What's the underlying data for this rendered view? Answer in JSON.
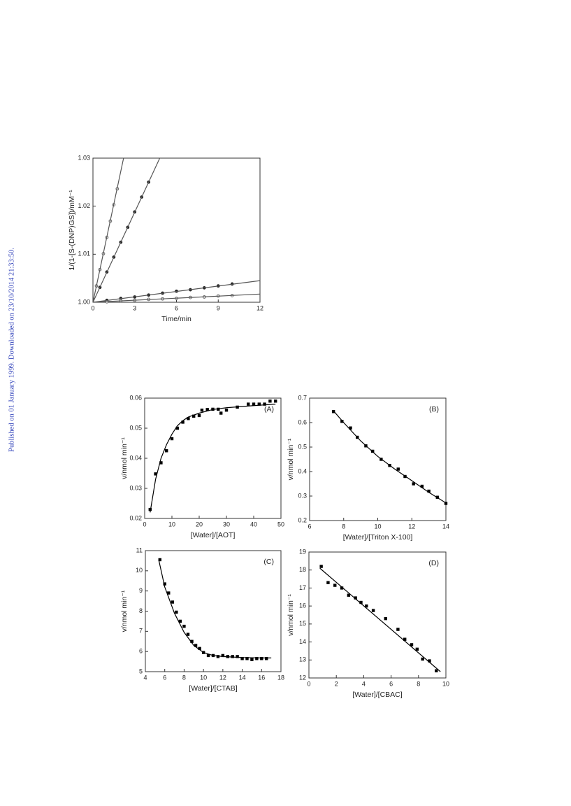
{
  "side_note": "Published on 01 January 1999. Downloaded on 23/10/2014 21:33:50.",
  "chart_data": [
    {
      "type": "scatter",
      "xlabel": "Time/min",
      "ylabel": "1/(1-[S-(DNP)GS])/mM⁻¹",
      "xlim": [
        0,
        12
      ],
      "xticks": [
        0,
        3,
        6,
        9,
        12
      ],
      "ylim": [
        1.0,
        1.03
      ],
      "yticks": [
        {
          "value": 1.0,
          "label": "1.00"
        },
        {
          "value": 1.01,
          "label": "1.01"
        },
        {
          "value": 1.02,
          "label": "1.02"
        },
        {
          "value": 1.03,
          "label": "1.03"
        }
      ],
      "series": [
        {
          "mode": "markers",
          "marker": "circle-open",
          "color": "#555555",
          "x": [
            0.25,
            0.5,
            0.75,
            1.0,
            1.25,
            1.5,
            1.75
          ],
          "values": [
            1.0034,
            1.0068,
            1.0101,
            1.0135,
            1.0169,
            1.0203,
            1.0236
          ]
        },
        {
          "mode": "line",
          "color": "#555555",
          "x": [
            0,
            2.2
          ],
          "values": [
            1.0,
            1.03
          ]
        },
        {
          "mode": "markers",
          "marker": "circle-filled",
          "color": "#222222",
          "x": [
            0.5,
            1.0,
            1.5,
            2.0,
            2.5,
            3.0,
            3.5,
            4.0
          ],
          "values": [
            1.0031,
            1.0063,
            1.0094,
            1.0125,
            1.0156,
            1.0188,
            1.0219,
            1.025
          ]
        },
        {
          "mode": "line",
          "color": "#555555",
          "x": [
            0,
            4.8
          ],
          "values": [
            1.0,
            1.03
          ]
        },
        {
          "mode": "markers",
          "marker": "circle-filled",
          "color": "#222222",
          "x": [
            1,
            2,
            3,
            4,
            5,
            6,
            7,
            8,
            9,
            10
          ],
          "values": [
            1.0004,
            1.0008,
            1.0011,
            1.0015,
            1.0019,
            1.0023,
            1.0026,
            1.003,
            1.0034,
            1.0038
          ]
        },
        {
          "mode": "line",
          "color": "#555555",
          "x": [
            0,
            12
          ],
          "values": [
            1.0,
            1.0045
          ]
        },
        {
          "mode": "markers",
          "marker": "circle-open",
          "color": "#555555",
          "x": [
            1,
            2,
            3,
            4,
            5,
            6,
            7,
            8,
            9,
            10
          ],
          "values": [
            1.0001,
            1.0003,
            1.0004,
            1.0006,
            1.0007,
            1.0008,
            1.001,
            1.0011,
            1.0013,
            1.0014
          ]
        },
        {
          "mode": "line",
          "color": "#555555",
          "x": [
            0,
            12
          ],
          "values": [
            1.0,
            1.0017
          ]
        }
      ]
    },
    {
      "type": "scatter",
      "panel": "(A)",
      "xlabel": "[Water]/[AOT]",
      "ylabel": "v/nmol  min⁻¹",
      "xlim": [
        0,
        50
      ],
      "xticks": [
        0,
        10,
        20,
        30,
        40,
        50
      ],
      "ylim": [
        0.02,
        0.06
      ],
      "yticks": [
        0.02,
        0.03,
        0.04,
        0.05,
        0.06
      ],
      "series": [
        {
          "mode": "markers",
          "marker": "square",
          "color": "#000000",
          "x": [
            2,
            4,
            6,
            8,
            10,
            12,
            14,
            16,
            18,
            20,
            21,
            23,
            25,
            27,
            28,
            30,
            34,
            38,
            40,
            42,
            44,
            46,
            48
          ],
          "values": [
            0.023,
            0.0348,
            0.0385,
            0.0425,
            0.0465,
            0.05,
            0.052,
            0.0532,
            0.054,
            0.0542,
            0.056,
            0.0562,
            0.0563,
            0.0563,
            0.055,
            0.056,
            0.057,
            0.058,
            0.058,
            0.058,
            0.058,
            0.059,
            0.059
          ]
        },
        {
          "mode": "line",
          "color": "#000000",
          "x": [
            2,
            4,
            6,
            8,
            10,
            12,
            14,
            16,
            20,
            25,
            30,
            40,
            48
          ],
          "values": [
            0.022,
            0.033,
            0.04,
            0.0445,
            0.048,
            0.0508,
            0.0525,
            0.0537,
            0.055,
            0.0562,
            0.0568,
            0.0575,
            0.058
          ]
        }
      ]
    },
    {
      "type": "scatter",
      "panel": "(B)",
      "xlabel": "[Water]/[Triton X-100]",
      "ylabel": "v/nmol  min⁻¹",
      "xlim": [
        6,
        14
      ],
      "xticks": [
        6,
        8,
        10,
        12,
        14
      ],
      "ylim": [
        0.2,
        0.7
      ],
      "yticks": [
        0.2,
        0.3,
        0.4,
        0.5,
        0.6,
        0.7
      ],
      "series": [
        {
          "mode": "markers",
          "marker": "square",
          "color": "#000000",
          "x": [
            7.4,
            7.9,
            8.4,
            8.8,
            9.3,
            9.7,
            10.2,
            10.7,
            11.2,
            11.6,
            12.1,
            12.6,
            13.0,
            13.5,
            14.0
          ],
          "values": [
            0.645,
            0.605,
            0.578,
            0.54,
            0.505,
            0.483,
            0.45,
            0.425,
            0.41,
            0.38,
            0.35,
            0.34,
            0.32,
            0.295,
            0.27
          ]
        },
        {
          "mode": "line",
          "color": "#000000",
          "x": [
            7.4,
            8,
            9,
            10,
            11,
            12,
            13,
            14
          ],
          "values": [
            0.648,
            0.6,
            0.525,
            0.462,
            0.41,
            0.363,
            0.315,
            0.272
          ]
        }
      ]
    },
    {
      "type": "scatter",
      "panel": "(C)",
      "xlabel": "[Water]/[CTAB]",
      "ylabel": "v/nmol  min⁻¹",
      "xlim": [
        4,
        18
      ],
      "xticks": [
        4,
        6,
        8,
        10,
        12,
        14,
        16,
        18
      ],
      "ylim": [
        5,
        11
      ],
      "yticks": [
        5,
        6,
        7,
        8,
        9,
        10,
        11
      ],
      "series": [
        {
          "mode": "markers",
          "marker": "square",
          "color": "#000000",
          "x": [
            5.5,
            6,
            6.4,
            6.8,
            7.2,
            7.6,
            8,
            8.4,
            8.8,
            9.2,
            9.6,
            10,
            10.5,
            11,
            11.5,
            12,
            12.5,
            13,
            13.5,
            14,
            14.5,
            15,
            15.5,
            16,
            16.5
          ],
          "values": [
            10.55,
            9.35,
            8.9,
            8.45,
            7.95,
            7.5,
            7.25,
            6.85,
            6.5,
            6.3,
            6.15,
            5.95,
            5.8,
            5.8,
            5.75,
            5.8,
            5.75,
            5.75,
            5.75,
            5.65,
            5.65,
            5.6,
            5.65,
            5.65,
            5.65
          ]
        },
        {
          "mode": "line",
          "color": "#000000",
          "x": [
            5.4,
            6,
            7,
            8,
            9,
            10,
            11,
            12,
            14,
            16,
            17
          ],
          "values": [
            10.5,
            9.2,
            7.9,
            6.95,
            6.3,
            5.95,
            5.8,
            5.75,
            5.7,
            5.68,
            5.68
          ]
        }
      ]
    },
    {
      "type": "scatter",
      "panel": "(D)",
      "xlabel": "[Water]/[CBAC]",
      "ylabel": "v/nmol  min⁻¹",
      "xlim": [
        0,
        10
      ],
      "xticks": [
        0,
        2,
        4,
        6,
        8,
        10
      ],
      "ylim": [
        12,
        19
      ],
      "yticks": [
        12,
        13,
        14,
        15,
        16,
        17,
        18,
        19
      ],
      "series": [
        {
          "mode": "markers",
          "marker": "square",
          "color": "#000000",
          "x": [
            0.9,
            1.4,
            1.9,
            2.4,
            2.9,
            3.4,
            3.8,
            4.2,
            4.7,
            5.6,
            6.5,
            7.0,
            7.5,
            7.9,
            8.3,
            8.8,
            9.3
          ],
          "values": [
            18.2,
            17.3,
            17.15,
            17.0,
            16.6,
            16.45,
            16.2,
            16.0,
            15.75,
            15.3,
            14.7,
            14.15,
            13.85,
            13.6,
            13.05,
            12.95,
            12.4
          ]
        },
        {
          "mode": "line",
          "color": "#000000",
          "x": [
            0.8,
            9.6
          ],
          "values": [
            18.1,
            12.35
          ]
        }
      ]
    }
  ]
}
